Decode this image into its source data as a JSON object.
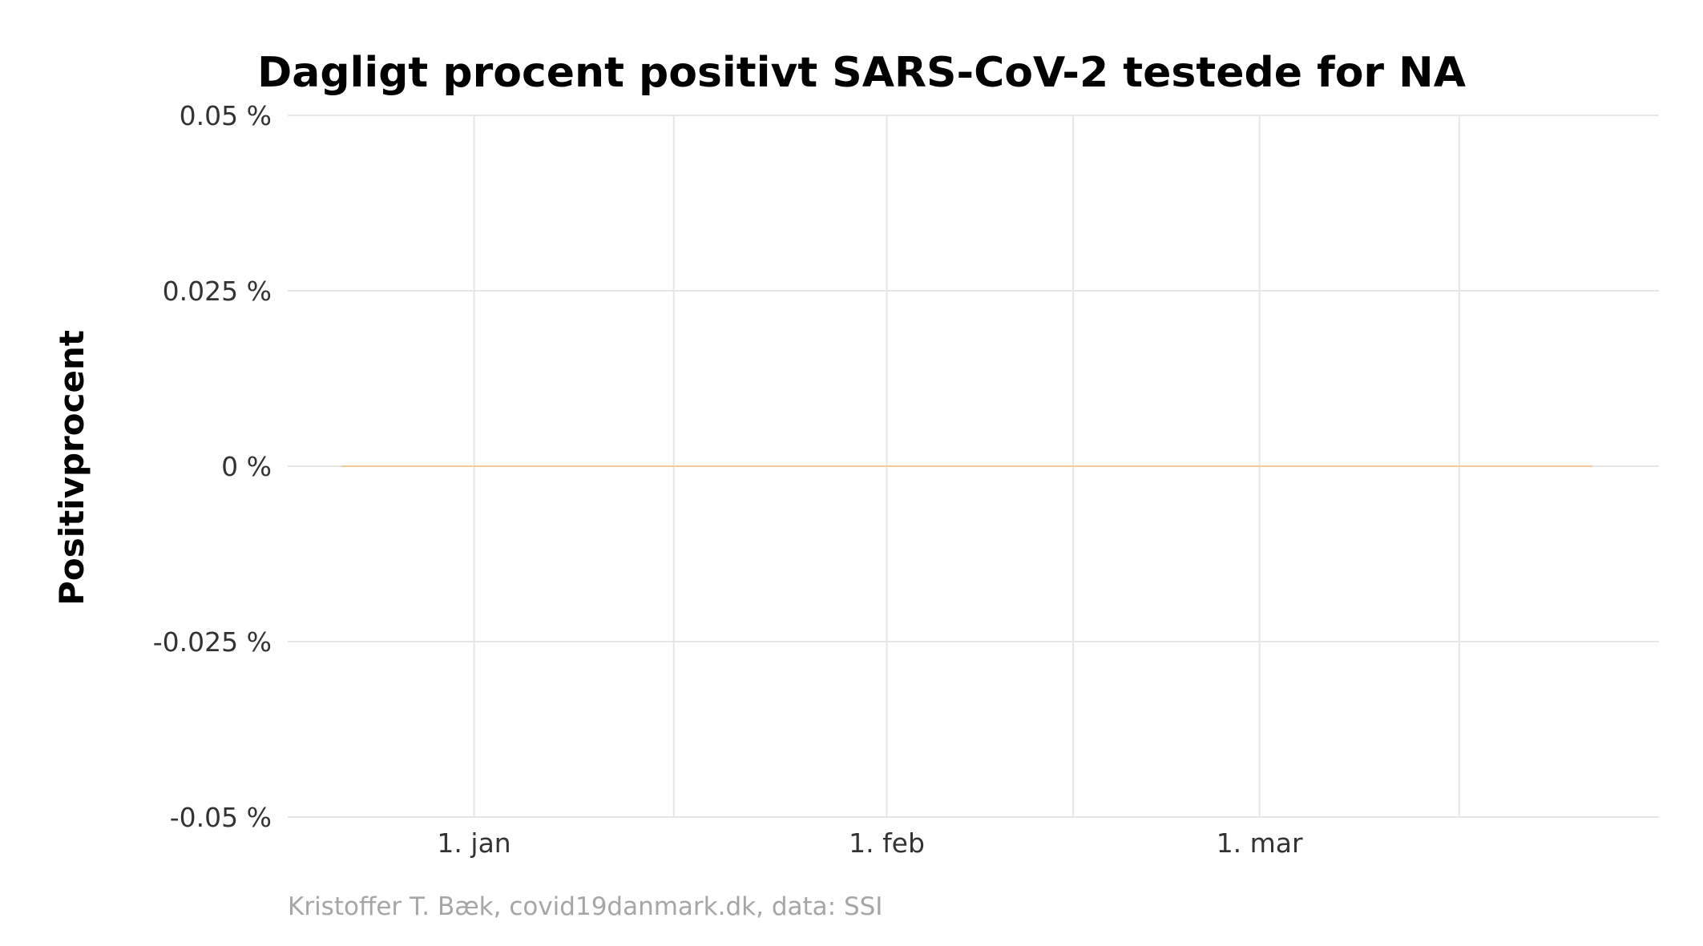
{
  "chart_data": {
    "type": "line",
    "title": "Dagligt procent positivt SARS-CoV-2 testede for NA",
    "xlabel": "",
    "ylabel": "Positivprocent",
    "caption": "Kristoffer T. Bæk, covid19danmark.dk, data: SSI",
    "x_tick_labels": [
      "1. jan",
      "1. feb",
      "1. mar"
    ],
    "x_ticks": [
      "2021-01-01",
      "2021-02-01",
      "2021-03-01"
    ],
    "x_minor_ticks": [
      "2021-01-16",
      "2021-02-15",
      "2021-03-16"
    ],
    "xlim": [
      "2020-12-18",
      "2021-03-31"
    ],
    "ylim": [
      -0.05,
      0.05
    ],
    "y_ticks": [
      -0.05,
      -0.025,
      0,
      0.025,
      0.05
    ],
    "y_tick_labels": [
      "-0.05 %",
      "-0.025 %",
      "0 %",
      "0.025 %",
      "0.05 %"
    ],
    "grid": true,
    "legend": "none",
    "series": [
      {
        "color": "#f5c99a",
        "x": [
          "2020-12-22",
          "2021-03-26"
        ],
        "y": [
          0,
          0
        ]
      }
    ]
  }
}
